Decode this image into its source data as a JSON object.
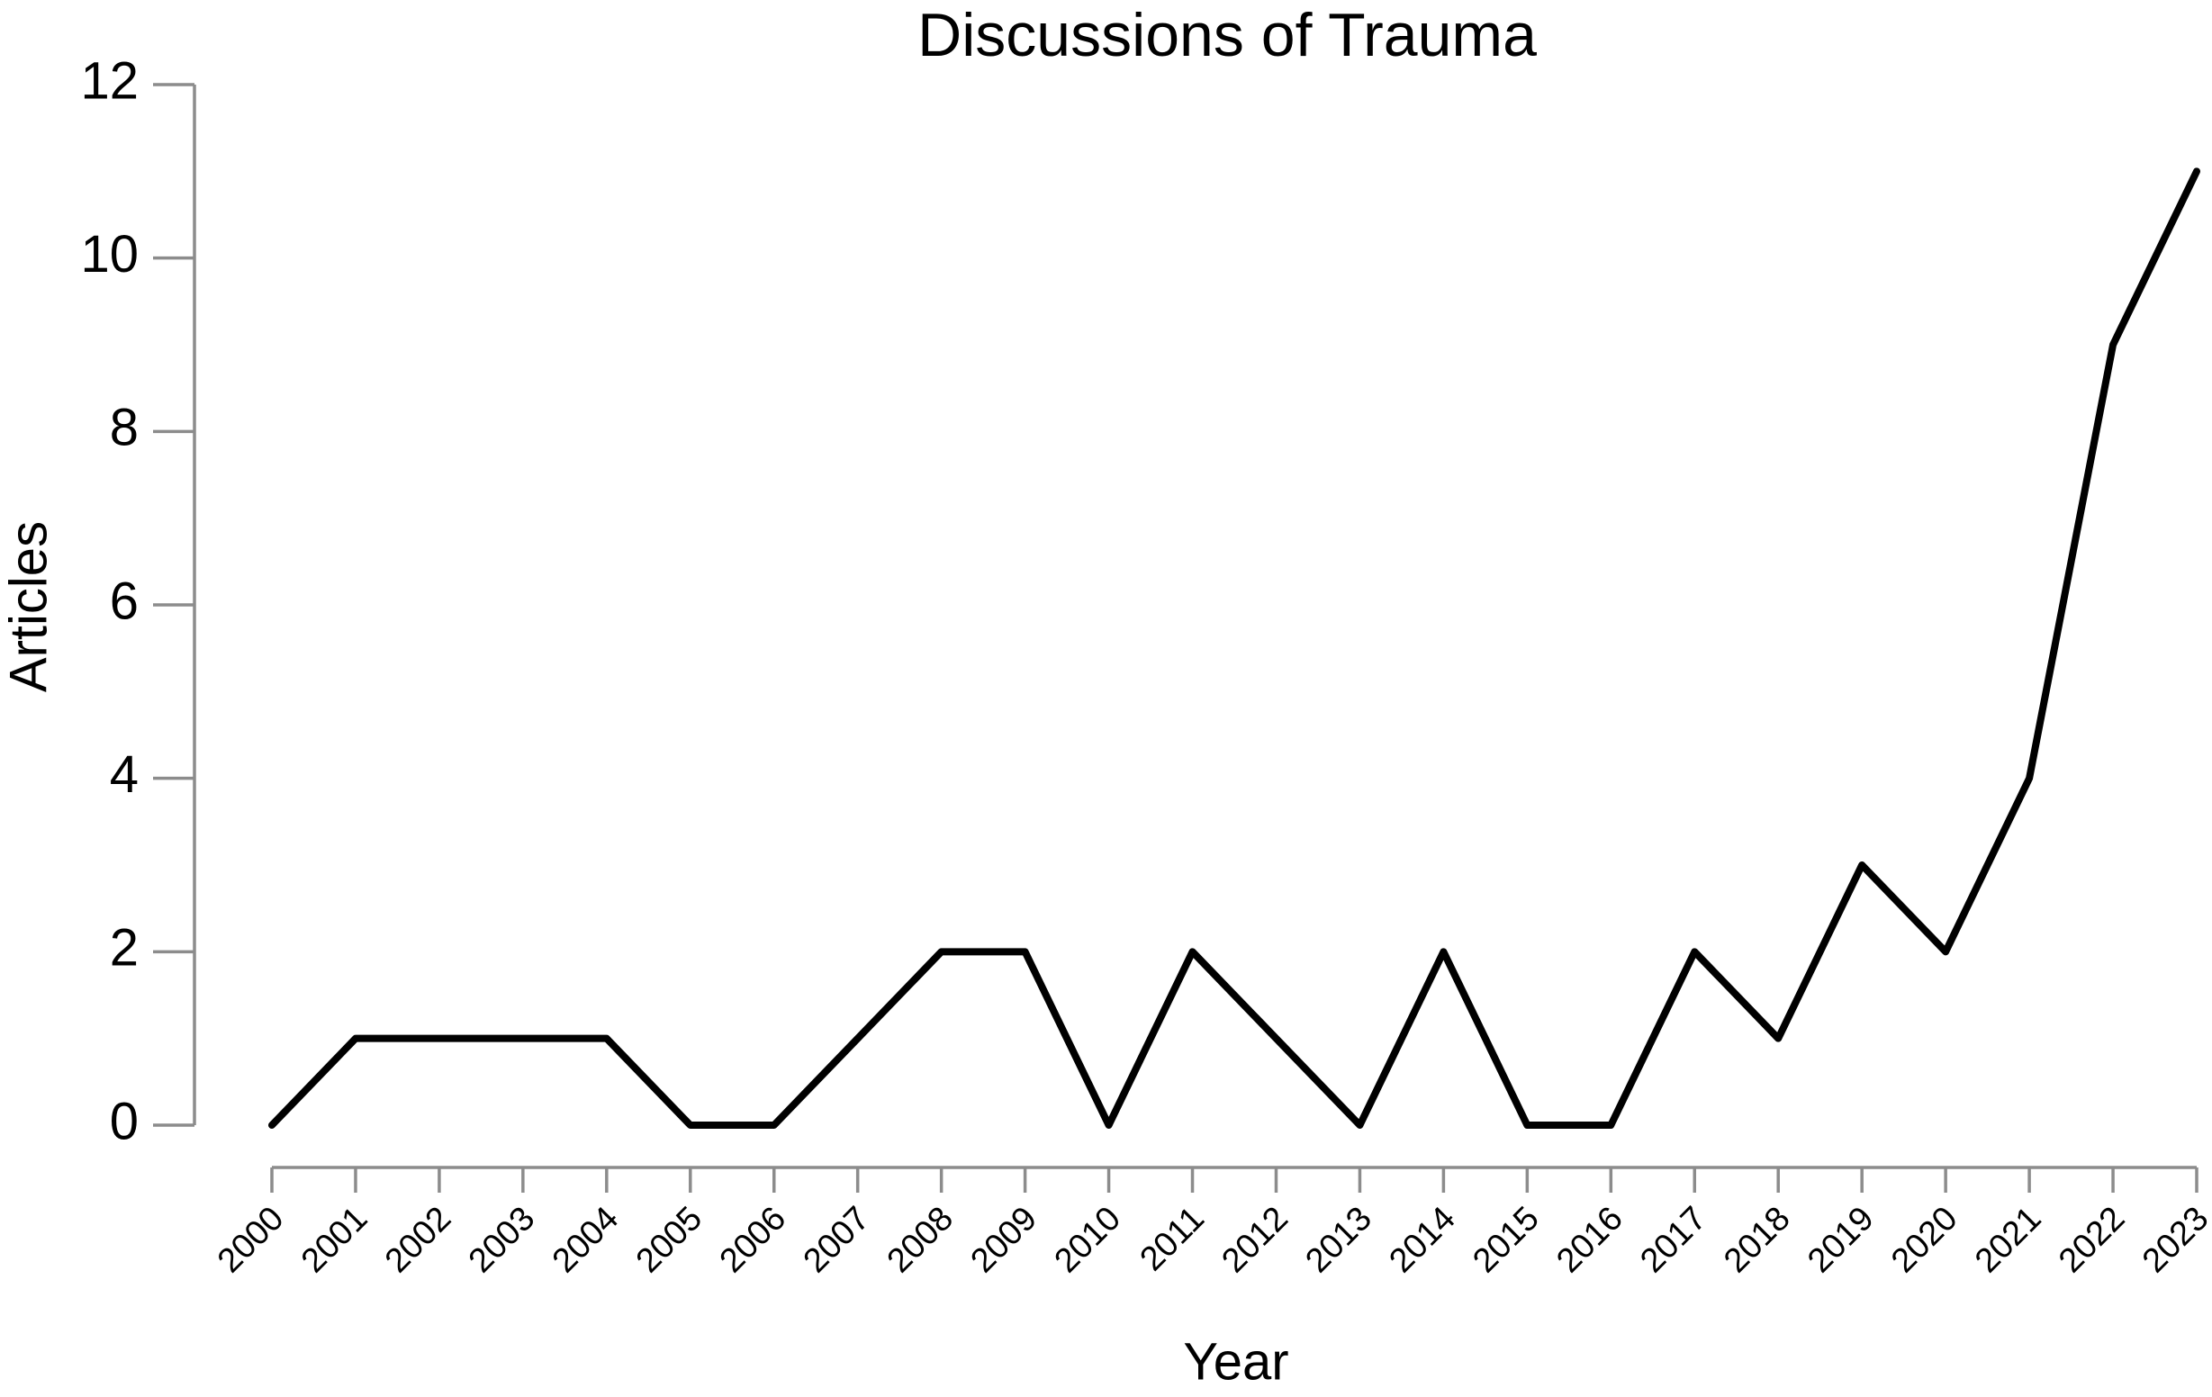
{
  "chart_data": {
    "type": "line",
    "title": "Discussions of Trauma",
    "x_label": "Year",
    "y_label": "Articles",
    "x": [
      2000,
      2001,
      2002,
      2003,
      2004,
      2005,
      2006,
      2007,
      2008,
      2009,
      2010,
      2011,
      2012,
      2013,
      2014,
      2015,
      2016,
      2017,
      2018,
      2019,
      2020,
      2021,
      2022,
      2023
    ],
    "series": [
      {
        "name": "Articles",
        "color": "#000000",
        "values": [
          0,
          1,
          1,
          1,
          1,
          0,
          0,
          1,
          2,
          2,
          0,
          2,
          1,
          0,
          2,
          0,
          0,
          2,
          1,
          3,
          2,
          4,
          9,
          11
        ]
      }
    ],
    "xlim": [
      2000,
      2023
    ],
    "xticks": [
      2000,
      2001,
      2002,
      2003,
      2004,
      2005,
      2006,
      2007,
      2008,
      2009,
      2010,
      2011,
      2012,
      2013,
      2014,
      2015,
      2016,
      2017,
      2018,
      2019,
      2020,
      2021,
      2022,
      2023
    ],
    "ylim": [
      0,
      12
    ],
    "yticks": [
      0,
      2,
      4,
      6,
      8,
      10,
      12
    ],
    "grid": false
  }
}
